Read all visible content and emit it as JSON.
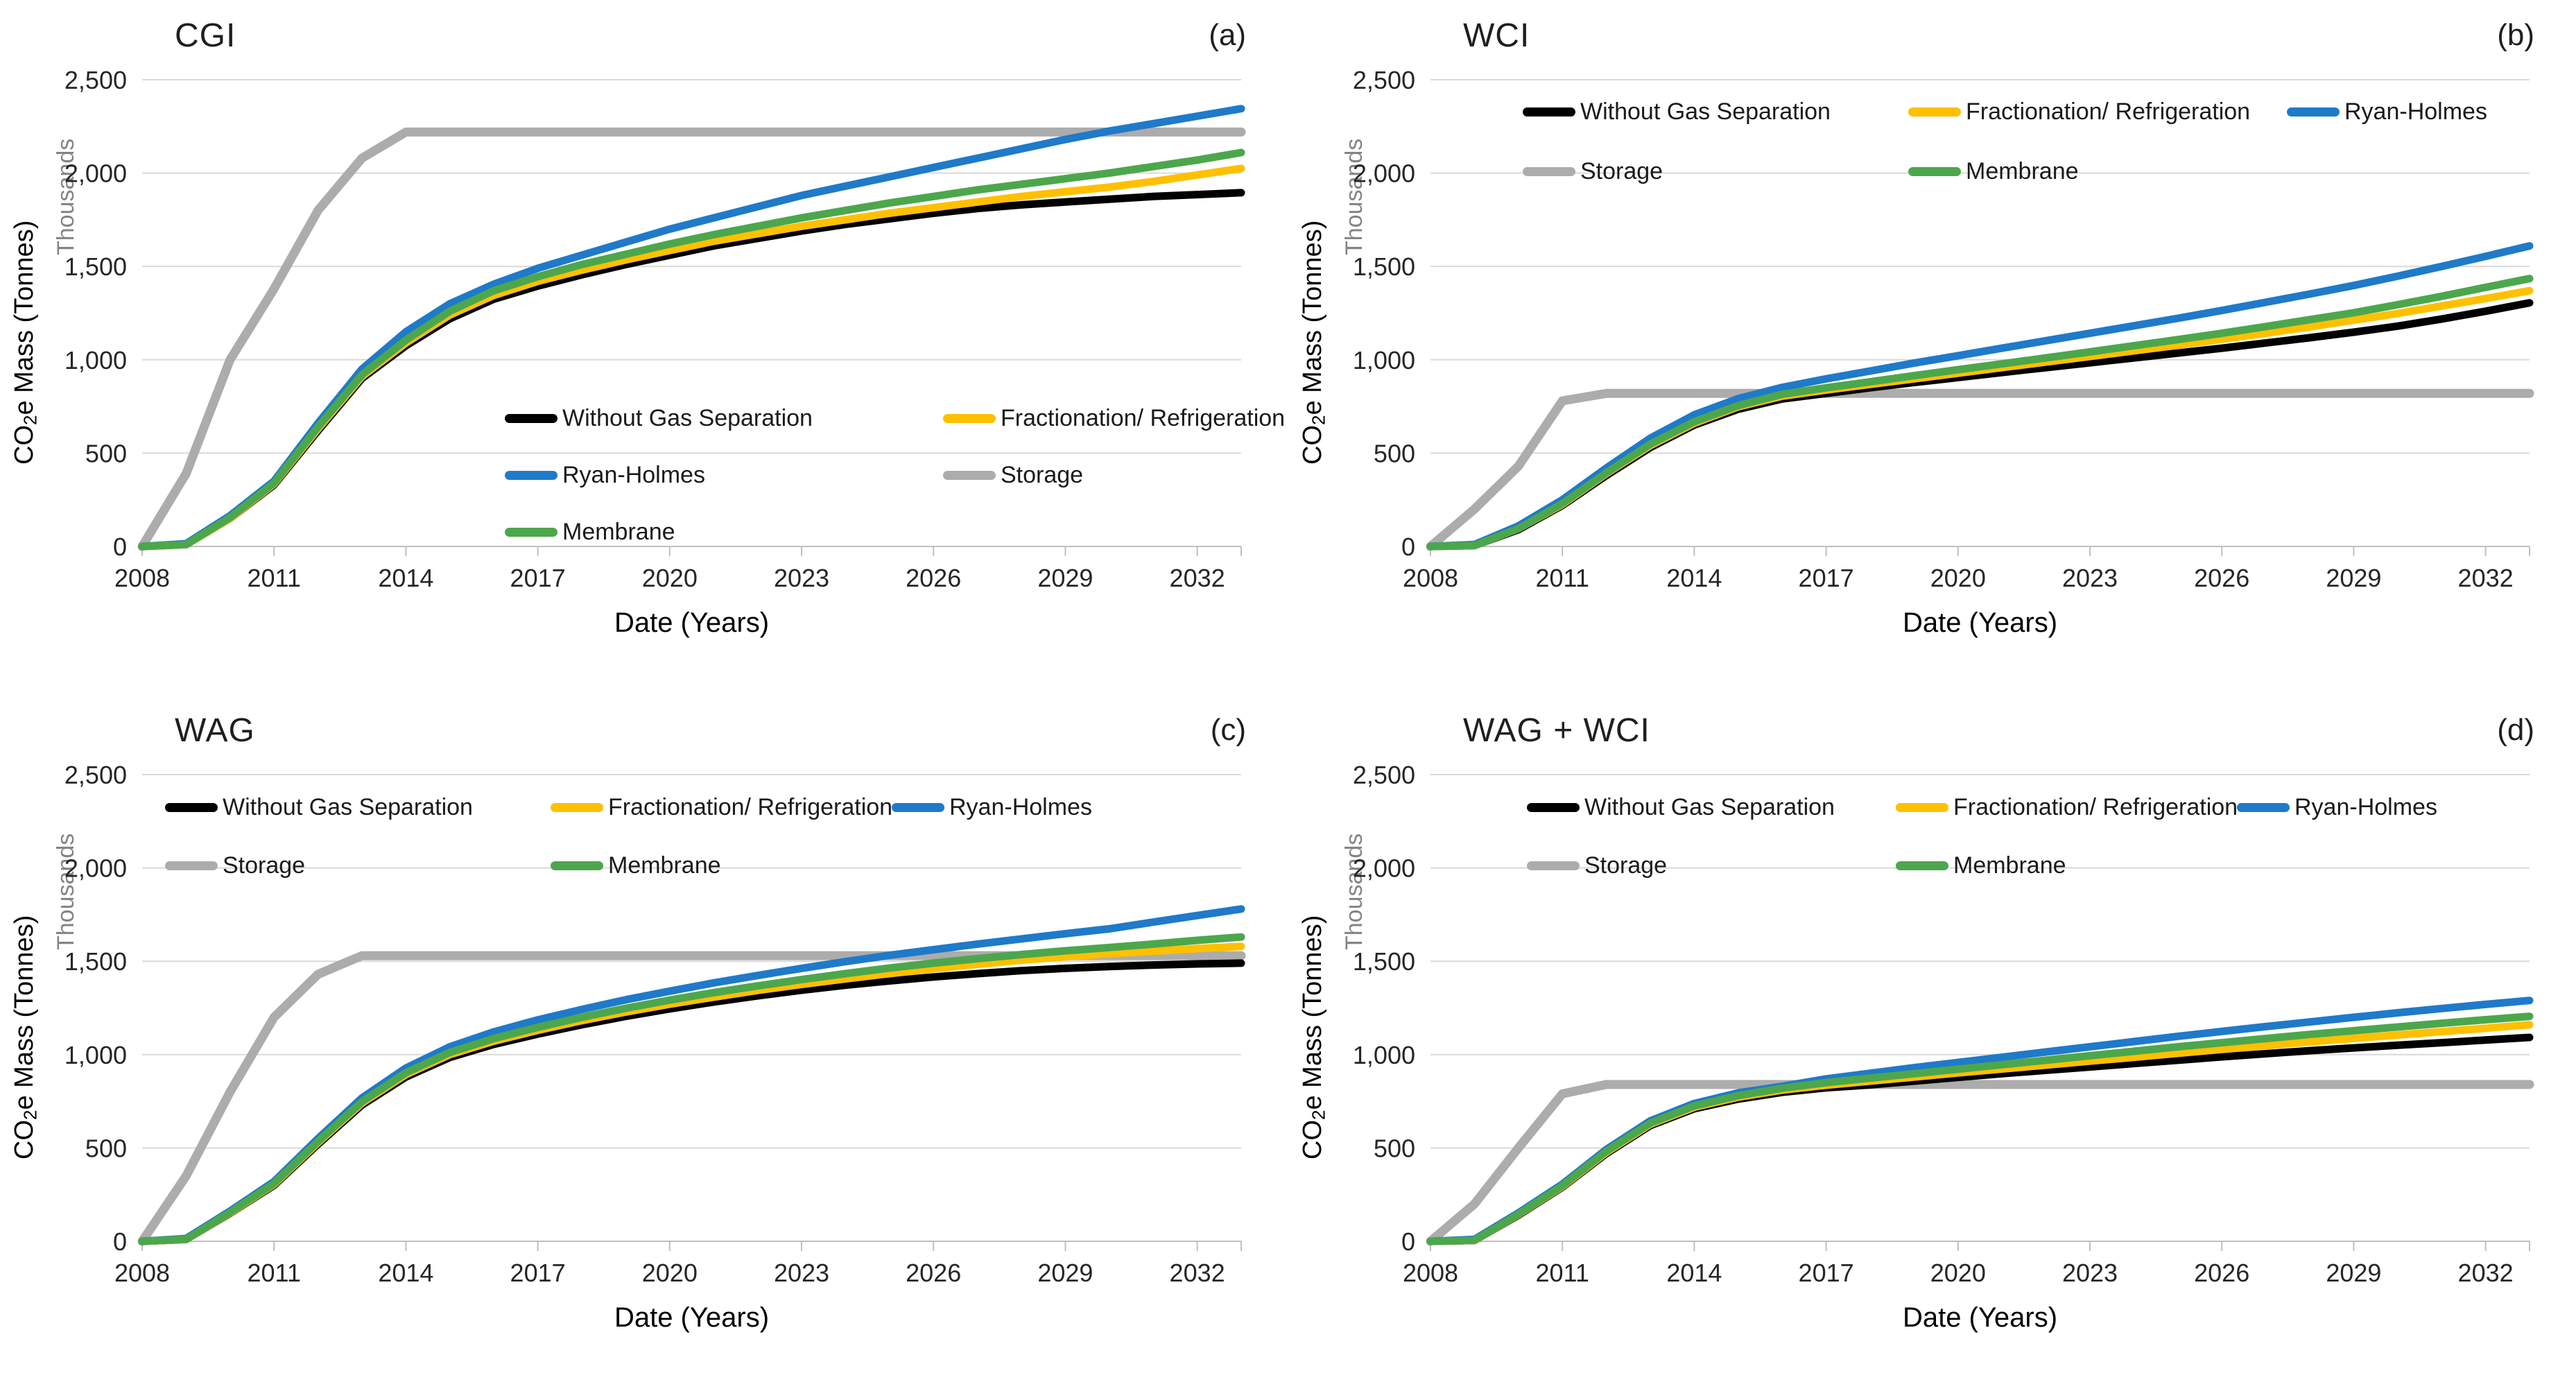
{
  "figure": {
    "x_domain": {
      "start": 2008,
      "end": 2033
    },
    "grid_color": "#D9D9D9",
    "axis_color": "#BFBFBF",
    "tick_text_color": "#262626"
  },
  "chart_data": [
    {
      "type": "line",
      "title": "CGI",
      "tag": "(a)",
      "xlabel": "Date (Years)",
      "ylabel": "CO₂e Mass (Tonnes)",
      "ylabel_parts": {
        "pre": "CO",
        "sub": "2",
        "post": "e Mass (Tonnes)"
      },
      "y_units_label": "Thousands",
      "x_ticks": [
        2008,
        2011,
        2014,
        2017,
        2020,
        2023,
        2026,
        2029,
        2032
      ],
      "y_ticks": [
        0,
        500,
        1000,
        1500,
        2000,
        2500
      ],
      "ylim": [
        0,
        2500
      ],
      "legend_position": "inside-middle",
      "draw_order": [
        3,
        0,
        1,
        2,
        4
      ],
      "series": [
        {
          "name": "Without Gas Separation",
          "color": "#000000",
          "values": [
            0,
            10,
            150,
            330,
            620,
            900,
            1075,
            1220,
            1325,
            1395,
            1455,
            1510,
            1560,
            1610,
            1650,
            1690,
            1725,
            1755,
            1785,
            1810,
            1830,
            1845,
            1860,
            1875,
            1885,
            1895
          ]
        },
        {
          "name": "Fractionation/ Refrigeration",
          "color": "#FFC000",
          "values": [
            0,
            10,
            150,
            335,
            630,
            910,
            1090,
            1240,
            1345,
            1420,
            1480,
            1535,
            1585,
            1635,
            1675,
            1715,
            1750,
            1785,
            1815,
            1845,
            1875,
            1900,
            1925,
            1955,
            1990,
            2025
          ]
        },
        {
          "name": "Ryan-Holmes",
          "color": "#1F7AC9",
          "values": [
            0,
            15,
            165,
            350,
            660,
            950,
            1150,
            1300,
            1405,
            1490,
            1560,
            1630,
            1700,
            1760,
            1820,
            1880,
            1930,
            1980,
            2030,
            2080,
            2130,
            2180,
            2225,
            2265,
            2305,
            2345
          ]
        },
        {
          "name": "Storage",
          "color": "#ACACAC",
          "values": [
            0,
            390,
            1000,
            1380,
            1800,
            2080,
            2220,
            2220,
            2220,
            2220,
            2220,
            2220,
            2220,
            2220,
            2220,
            2220,
            2220,
            2220,
            2220,
            2220,
            2220,
            2220,
            2220,
            2220,
            2220,
            2220
          ]
        },
        {
          "name": "Membrane",
          "color": "#4CA74C",
          "values": [
            0,
            10,
            155,
            340,
            640,
            920,
            1105,
            1260,
            1370,
            1445,
            1510,
            1565,
            1620,
            1670,
            1715,
            1760,
            1800,
            1840,
            1875,
            1910,
            1940,
            1970,
            2000,
            2035,
            2070,
            2110
          ]
        }
      ]
    },
    {
      "type": "line",
      "title": "WCI",
      "tag": "(b)",
      "xlabel": "Date (Years)",
      "ylabel": "CO₂e Mass (Tonnes)",
      "ylabel_parts": {
        "pre": "CO",
        "sub": "2",
        "post": "e Mass (Tonnes)"
      },
      "y_units_label": "Thousands",
      "x_ticks": [
        2008,
        2011,
        2014,
        2017,
        2020,
        2023,
        2026,
        2029,
        2032
      ],
      "y_ticks": [
        0,
        500,
        1000,
        1500,
        2000,
        2500
      ],
      "ylim": [
        0,
        2500
      ],
      "legend_position": "inside-top",
      "draw_order": [
        3,
        0,
        1,
        2,
        4
      ],
      "series": [
        {
          "name": "Without Gas Separation",
          "color": "#000000",
          "values": [
            0,
            5,
            90,
            220,
            380,
            530,
            650,
            735,
            790,
            820,
            850,
            878,
            905,
            932,
            958,
            984,
            1010,
            1036,
            1062,
            1090,
            1118,
            1148,
            1180,
            1218,
            1260,
            1305
          ]
        },
        {
          "name": "Fractionation/ Refrigeration",
          "color": "#FFC000",
          "values": [
            0,
            5,
            95,
            225,
            390,
            540,
            660,
            748,
            805,
            838,
            868,
            898,
            928,
            958,
            988,
            1018,
            1048,
            1078,
            1110,
            1142,
            1176,
            1212,
            1248,
            1288,
            1328,
            1370
          ]
        },
        {
          "name": "Ryan-Holmes",
          "color": "#1F7AC9",
          "values": [
            0,
            10,
            110,
            250,
            420,
            580,
            705,
            792,
            852,
            898,
            940,
            982,
            1022,
            1062,
            1102,
            1142,
            1182,
            1222,
            1264,
            1308,
            1352,
            1398,
            1448,
            1500,
            1554,
            1610
          ]
        },
        {
          "name": "Storage",
          "color": "#ACACAC",
          "values": [
            0,
            200,
            430,
            780,
            820,
            820,
            820,
            820,
            820,
            820,
            820,
            820,
            820,
            820,
            820,
            820,
            820,
            820,
            820,
            820,
            820,
            820,
            820,
            820,
            820,
            820
          ]
        },
        {
          "name": "Membrane",
          "color": "#4CA74C",
          "values": [
            0,
            5,
            95,
            230,
            395,
            548,
            668,
            755,
            815,
            850,
            882,
            915,
            947,
            978,
            1010,
            1042,
            1075,
            1108,
            1142,
            1178,
            1215,
            1252,
            1295,
            1340,
            1388,
            1435
          ]
        }
      ]
    },
    {
      "type": "line",
      "title": "WAG",
      "tag": "(c)",
      "xlabel": "Date (Years)",
      "ylabel": "CO₂e Mass (Tonnes)",
      "ylabel_parts": {
        "pre": "CO",
        "sub": "2",
        "post": "e Mass (Tonnes)"
      },
      "y_units_label": "Thousands",
      "x_ticks": [
        2008,
        2011,
        2014,
        2017,
        2020,
        2023,
        2026,
        2029,
        2032
      ],
      "y_ticks": [
        0,
        500,
        1000,
        1500,
        2000,
        2500
      ],
      "ylim": [
        0,
        2500
      ],
      "legend_position": "inside-top",
      "draw_order": [
        3,
        0,
        1,
        2,
        4
      ],
      "series": [
        {
          "name": "Without Gas Separation",
          "color": "#000000",
          "values": [
            0,
            10,
            150,
            300,
            520,
            730,
            880,
            985,
            1055,
            1110,
            1160,
            1205,
            1245,
            1282,
            1315,
            1345,
            1372,
            1395,
            1416,
            1434,
            1450,
            1462,
            1472,
            1480,
            1486,
            1490
          ]
        },
        {
          "name": "Fractionation/ Refrigeration",
          "color": "#FFC000",
          "values": [
            0,
            10,
            152,
            305,
            528,
            740,
            893,
            1000,
            1072,
            1130,
            1182,
            1228,
            1270,
            1308,
            1344,
            1376,
            1406,
            1434,
            1460,
            1484,
            1506,
            1524,
            1540,
            1554,
            1568,
            1580
          ]
        },
        {
          "name": "Ryan-Holmes",
          "color": "#1F7AC9",
          "values": [
            0,
            15,
            162,
            320,
            550,
            768,
            928,
            1042,
            1122,
            1186,
            1242,
            1294,
            1340,
            1384,
            1424,
            1462,
            1498,
            1532,
            1562,
            1592,
            1620,
            1648,
            1674,
            1710,
            1745,
            1780
          ]
        },
        {
          "name": "Storage",
          "color": "#ACACAC",
          "values": [
            0,
            350,
            800,
            1200,
            1430,
            1530,
            1530,
            1530,
            1530,
            1530,
            1530,
            1530,
            1530,
            1530,
            1530,
            1530,
            1530,
            1530,
            1530,
            1530,
            1530,
            1530,
            1530,
            1530,
            1530,
            1530
          ]
        },
        {
          "name": "Membrane",
          "color": "#4CA74C",
          "values": [
            0,
            10,
            155,
            310,
            535,
            748,
            903,
            1012,
            1086,
            1146,
            1200,
            1248,
            1292,
            1332,
            1368,
            1402,
            1434,
            1464,
            1490,
            1514,
            1536,
            1556,
            1574,
            1592,
            1612,
            1630
          ]
        }
      ]
    },
    {
      "type": "line",
      "title": "WAG + WCI",
      "tag": "(d)",
      "xlabel": "Date (Years)",
      "ylabel": "CO₂e Mass (Tonnes)",
      "ylabel_parts": {
        "pre": "CO",
        "sub": "2",
        "post": "e Mass (Tonnes)"
      },
      "y_units_label": "Thousands",
      "x_ticks": [
        2008,
        2011,
        2014,
        2017,
        2020,
        2023,
        2026,
        2029,
        2032
      ],
      "y_ticks": [
        0,
        500,
        1000,
        1500,
        2000,
        2500
      ],
      "ylim": [
        0,
        2500
      ],
      "legend_position": "inside-top",
      "draw_order": [
        3,
        0,
        1,
        2,
        4
      ],
      "series": [
        {
          "name": "Without Gas Separation",
          "color": "#000000",
          "values": [
            0,
            5,
            140,
            290,
            470,
            620,
            710,
            762,
            798,
            822,
            838,
            858,
            878,
            898,
            916,
            934,
            952,
            970,
            988,
            1005,
            1021,
            1036,
            1050,
            1064,
            1078,
            1092
          ]
        },
        {
          "name": "Fractionation/ Refrigeration",
          "color": "#FFC000",
          "values": [
            0,
            5,
            143,
            294,
            476,
            627,
            718,
            772,
            810,
            836,
            858,
            880,
            902,
            923,
            944,
            965,
            986,
            1007,
            1028,
            1048,
            1068,
            1087,
            1105,
            1123,
            1141,
            1160
          ]
        },
        {
          "name": "Ryan-Holmes",
          "color": "#1F7AC9",
          "values": [
            0,
            10,
            152,
            306,
            492,
            645,
            738,
            795,
            830,
            870,
            900,
            930,
            958,
            986,
            1014,
            1042,
            1070,
            1098,
            1124,
            1150,
            1175,
            1200,
            1224,
            1247,
            1269,
            1290
          ]
        },
        {
          "name": "Storage",
          "color": "#ACACAC",
          "values": [
            0,
            200,
            500,
            790,
            840,
            840,
            840,
            840,
            840,
            840,
            840,
            840,
            840,
            840,
            840,
            840,
            840,
            840,
            840,
            840,
            840,
            840,
            840,
            840,
            840,
            840
          ]
        },
        {
          "name": "Membrane",
          "color": "#4CA74C",
          "values": [
            0,
            5,
            145,
            298,
            482,
            633,
            725,
            780,
            820,
            850,
            874,
            898,
            922,
            946,
            970,
            994,
            1018,
            1042,
            1064,
            1086,
            1108,
            1128,
            1148,
            1168,
            1187,
            1205
          ]
        }
      ]
    }
  ]
}
